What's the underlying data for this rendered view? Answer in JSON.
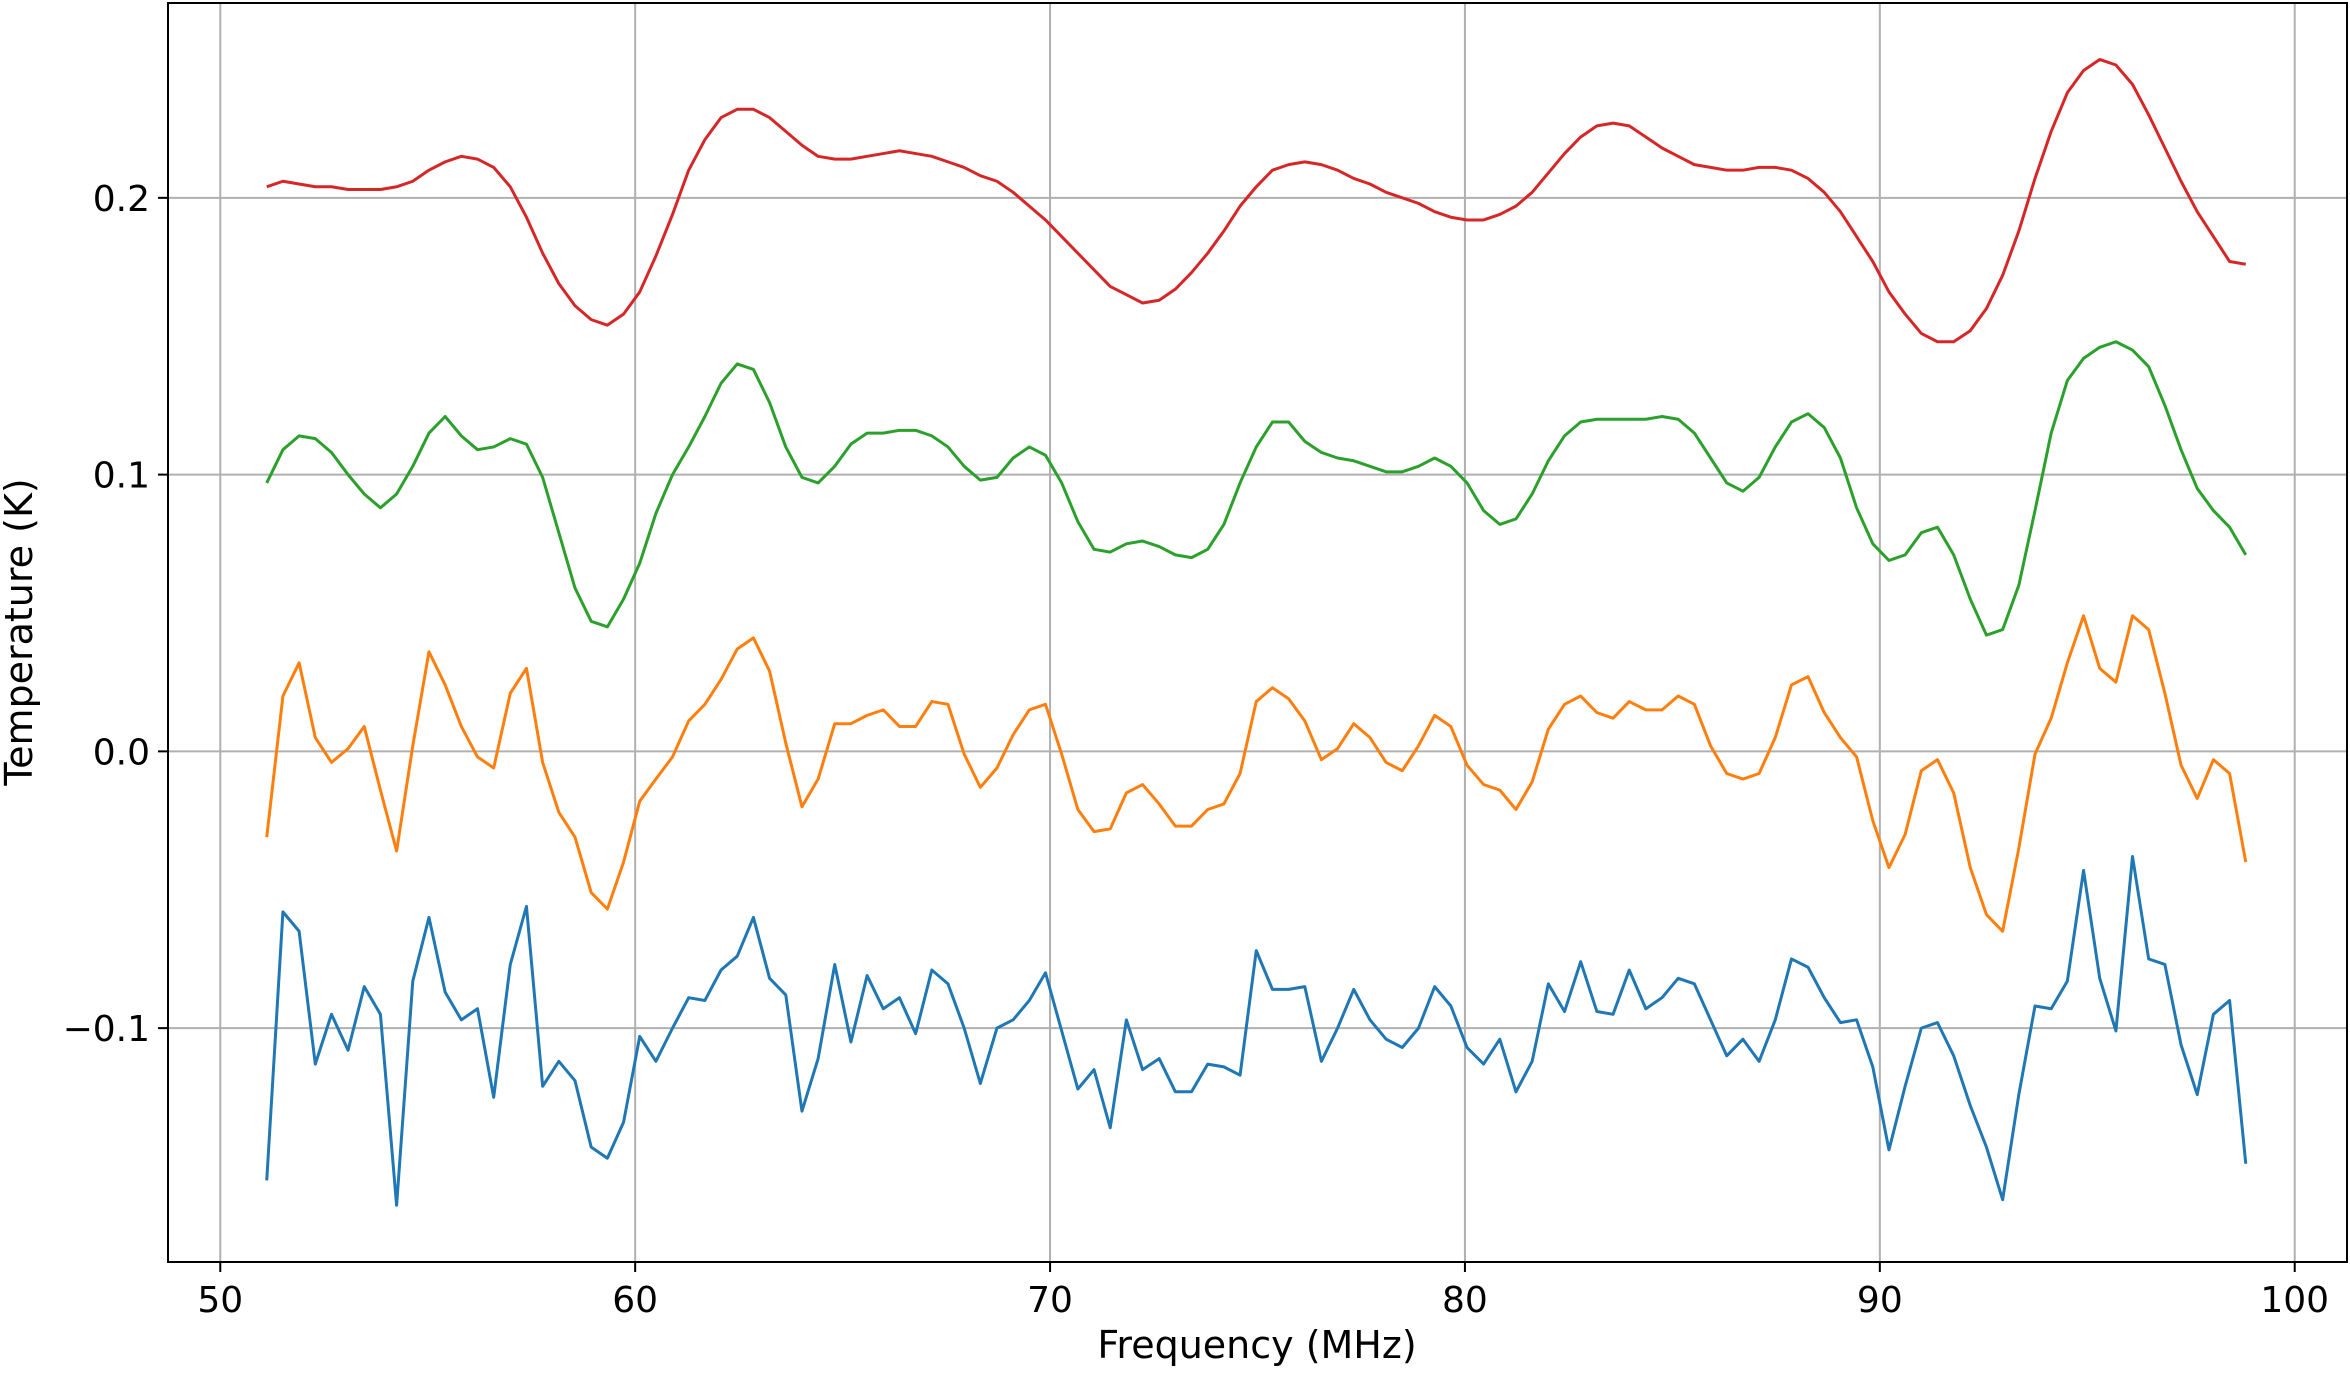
{
  "chart_data": {
    "type": "line",
    "x_label": "Frequency (MHz)",
    "y_label": "Temperature (K)",
    "xlim": [
      48.74,
      101.26
    ],
    "ylim": [
      -0.1845,
      0.2704
    ],
    "xticks": [
      50,
      60,
      70,
      80,
      90,
      100
    ],
    "yticks": [
      {
        "value": -0.1,
        "label": "−0.1"
      },
      {
        "value": 0,
        "label": "0.0"
      },
      0.1,
      0.2
    ],
    "grid": true,
    "x": [
      51.12,
      51.51,
      51.9,
      52.29,
      52.68,
      53.08,
      53.47,
      53.86,
      54.25,
      54.64,
      55.03,
      55.42,
      55.81,
      56.2,
      56.59,
      56.99,
      57.38,
      57.77,
      58.16,
      58.55,
      58.94,
      59.33,
      59.72,
      60.11,
      60.5,
      60.9,
      61.29,
      61.68,
      62.07,
      62.46,
      62.85,
      63.24,
      63.63,
      64.02,
      64.41,
      64.81,
      65.2,
      65.59,
      65.98,
      66.37,
      66.76,
      67.15,
      67.54,
      67.93,
      68.32,
      68.72,
      69.11,
      69.5,
      69.89,
      70.28,
      70.67,
      71.06,
      71.45,
      71.84,
      72.23,
      72.63,
      73.02,
      73.41,
      73.8,
      74.19,
      74.58,
      74.97,
      75.36,
      75.75,
      76.14,
      76.54,
      76.93,
      77.32,
      77.71,
      78.1,
      78.49,
      78.88,
      79.27,
      79.66,
      80.05,
      80.45,
      80.84,
      81.23,
      81.62,
      82.01,
      82.4,
      82.79,
      83.18,
      83.57,
      83.96,
      84.36,
      84.75,
      85.14,
      85.53,
      85.92,
      86.31,
      86.7,
      87.09,
      87.48,
      87.87,
      88.27,
      88.66,
      89.05,
      89.44,
      89.83,
      90.22,
      90.61,
      91.0,
      91.39,
      91.78,
      92.18,
      92.57,
      92.96,
      93.35,
      93.74,
      94.13,
      94.52,
      94.91,
      95.3,
      95.69,
      96.09,
      96.48,
      96.87,
      97.26,
      97.65,
      98.04,
      98.43,
      98.82
    ],
    "series": [
      {
        "color": "#1f77b4",
        "values": [
          -0.155,
          -0.058,
          -0.065,
          -0.113,
          -0.095,
          -0.108,
          -0.085,
          -0.095,
          -0.164,
          -0.083,
          -0.06,
          -0.087,
          -0.097,
          -0.093,
          -0.125,
          -0.077,
          -0.056,
          -0.121,
          -0.112,
          -0.119,
          -0.143,
          -0.147,
          -0.134,
          -0.103,
          -0.112,
          -0.1,
          -0.089,
          -0.09,
          -0.079,
          -0.074,
          -0.06,
          -0.082,
          -0.088,
          -0.13,
          -0.111,
          -0.077,
          -0.105,
          -0.081,
          -0.093,
          -0.089,
          -0.102,
          -0.079,
          -0.084,
          -0.1,
          -0.12,
          -0.1,
          -0.097,
          -0.09,
          -0.08,
          -0.101,
          -0.122,
          -0.115,
          -0.136,
          -0.097,
          -0.115,
          -0.111,
          -0.123,
          -0.123,
          -0.113,
          -0.114,
          -0.117,
          -0.072,
          -0.086,
          -0.086,
          -0.085,
          -0.112,
          -0.1,
          -0.086,
          -0.097,
          -0.104,
          -0.107,
          -0.1,
          -0.085,
          -0.092,
          -0.107,
          -0.113,
          -0.104,
          -0.123,
          -0.112,
          -0.084,
          -0.094,
          -0.076,
          -0.094,
          -0.095,
          -0.079,
          -0.093,
          -0.089,
          -0.082,
          -0.084,
          -0.097,
          -0.11,
          -0.104,
          -0.112,
          -0.097,
          -0.075,
          -0.078,
          -0.089,
          -0.098,
          -0.097,
          -0.114,
          -0.144,
          -0.121,
          -0.1,
          -0.098,
          -0.11,
          -0.128,
          -0.143,
          -0.162,
          -0.124,
          -0.092,
          -0.093,
          -0.083,
          -0.043,
          -0.082,
          -0.101,
          -0.038,
          -0.075,
          -0.077,
          -0.106,
          -0.124,
          -0.095,
          -0.09,
          -0.149
        ]
      },
      {
        "color": "#ff7f0e",
        "values": [
          -0.031,
          0.02,
          0.032,
          0.005,
          -0.004,
          0.001,
          0.009,
          -0.014,
          -0.036,
          0.002,
          0.036,
          0.024,
          0.009,
          -0.002,
          -0.006,
          0.021,
          0.03,
          -0.004,
          -0.022,
          -0.031,
          -0.051,
          -0.057,
          -0.04,
          -0.018,
          -0.01,
          -0.002,
          0.011,
          0.017,
          0.026,
          0.037,
          0.041,
          0.029,
          0.003,
          -0.02,
          -0.01,
          0.01,
          0.01,
          0.013,
          0.015,
          0.009,
          0.009,
          0.018,
          0.017,
          -0.001,
          -0.013,
          -0.006,
          0.006,
          0.015,
          0.017,
          -0.001,
          -0.021,
          -0.029,
          -0.028,
          -0.015,
          -0.012,
          -0.019,
          -0.027,
          -0.027,
          -0.021,
          -0.019,
          -0.008,
          0.018,
          0.023,
          0.019,
          0.011,
          -0.003,
          0.001,
          0.01,
          0.005,
          -0.004,
          -0.007,
          0.002,
          0.013,
          0.009,
          -0.005,
          -0.012,
          -0.014,
          -0.021,
          -0.011,
          0.008,
          0.017,
          0.02,
          0.014,
          0.012,
          0.018,
          0.015,
          0.015,
          0.02,
          0.017,
          0.002,
          -0.008,
          -0.01,
          -0.008,
          0.005,
          0.024,
          0.027,
          0.014,
          0.005,
          -0.002,
          -0.025,
          -0.042,
          -0.03,
          -0.007,
          -0.003,
          -0.015,
          -0.042,
          -0.059,
          -0.065,
          -0.035,
          -0.001,
          0.012,
          0.032,
          0.049,
          0.03,
          0.025,
          0.049,
          0.044,
          0.021,
          -0.005,
          -0.017,
          -0.003,
          -0.008,
          -0.04
        ]
      },
      {
        "color": "#2ca02c",
        "values": [
          0.097,
          0.109,
          0.114,
          0.113,
          0.108,
          0.1,
          0.093,
          0.088,
          0.093,
          0.103,
          0.115,
          0.121,
          0.114,
          0.109,
          0.11,
          0.113,
          0.111,
          0.099,
          0.079,
          0.059,
          0.047,
          0.045,
          0.055,
          0.068,
          0.086,
          0.1,
          0.11,
          0.121,
          0.133,
          0.14,
          0.138,
          0.126,
          0.11,
          0.099,
          0.097,
          0.103,
          0.111,
          0.115,
          0.115,
          0.116,
          0.116,
          0.114,
          0.11,
          0.103,
          0.098,
          0.099,
          0.106,
          0.11,
          0.107,
          0.097,
          0.083,
          0.073,
          0.072,
          0.075,
          0.076,
          0.074,
          0.071,
          0.07,
          0.073,
          0.082,
          0.097,
          0.11,
          0.119,
          0.119,
          0.112,
          0.108,
          0.106,
          0.105,
          0.103,
          0.101,
          0.101,
          0.103,
          0.106,
          0.103,
          0.097,
          0.087,
          0.082,
          0.084,
          0.093,
          0.105,
          0.114,
          0.119,
          0.12,
          0.12,
          0.12,
          0.12,
          0.121,
          0.12,
          0.115,
          0.106,
          0.097,
          0.094,
          0.099,
          0.11,
          0.119,
          0.122,
          0.117,
          0.106,
          0.088,
          0.075,
          0.069,
          0.071,
          0.079,
          0.081,
          0.071,
          0.055,
          0.042,
          0.044,
          0.06,
          0.087,
          0.115,
          0.134,
          0.142,
          0.146,
          0.148,
          0.145,
          0.139,
          0.125,
          0.109,
          0.095,
          0.087,
          0.081,
          0.071
        ]
      },
      {
        "color": "#d62728",
        "values": [
          0.204,
          0.206,
          0.205,
          0.204,
          0.204,
          0.203,
          0.203,
          0.203,
          0.204,
          0.206,
          0.21,
          0.213,
          0.215,
          0.214,
          0.211,
          0.204,
          0.193,
          0.18,
          0.169,
          0.161,
          0.156,
          0.154,
          0.158,
          0.166,
          0.179,
          0.194,
          0.21,
          0.221,
          0.229,
          0.232,
          0.232,
          0.229,
          0.224,
          0.219,
          0.215,
          0.214,
          0.214,
          0.215,
          0.216,
          0.217,
          0.216,
          0.215,
          0.213,
          0.211,
          0.208,
          0.206,
          0.202,
          0.197,
          0.192,
          0.186,
          0.18,
          0.174,
          0.168,
          0.165,
          0.162,
          0.163,
          0.167,
          0.173,
          0.18,
          0.188,
          0.197,
          0.204,
          0.21,
          0.212,
          0.213,
          0.212,
          0.21,
          0.207,
          0.205,
          0.202,
          0.2,
          0.198,
          0.195,
          0.193,
          0.192,
          0.192,
          0.194,
          0.197,
          0.202,
          0.209,
          0.216,
          0.222,
          0.226,
          0.227,
          0.226,
          0.222,
          0.218,
          0.215,
          0.212,
          0.211,
          0.21,
          0.21,
          0.211,
          0.211,
          0.21,
          0.207,
          0.202,
          0.195,
          0.186,
          0.177,
          0.166,
          0.158,
          0.151,
          0.148,
          0.148,
          0.152,
          0.16,
          0.172,
          0.188,
          0.207,
          0.224,
          0.238,
          0.246,
          0.25,
          0.248,
          0.241,
          0.23,
          0.218,
          0.206,
          0.195,
          0.186,
          0.177,
          0.176
        ]
      }
    ]
  }
}
